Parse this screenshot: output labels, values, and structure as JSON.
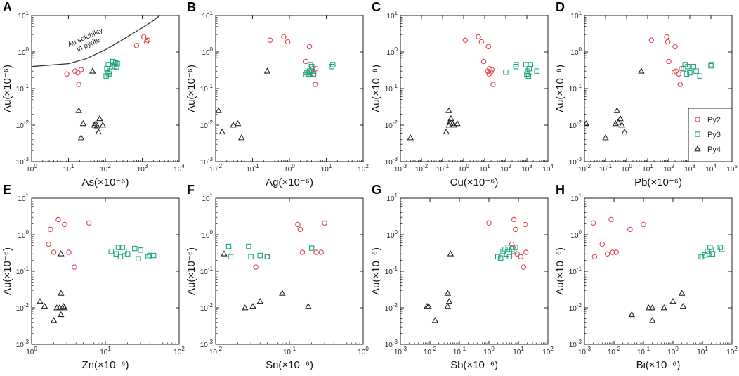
{
  "colors": {
    "Py2": "#e0464f",
    "Py3": "#1aa57a",
    "Py4": "#222222",
    "axis": "#222222"
  },
  "legend": [
    {
      "name": "Py2",
      "symbol": "circle"
    },
    {
      "name": "Py3",
      "symbol": "square"
    },
    {
      "name": "Py4",
      "symbol": "triangle"
    }
  ],
  "chart_data": [
    {
      "type": "scatter",
      "panel": "A",
      "xlabel": "As(×10⁻⁶)",
      "ylabel": "Au(×10⁻⁶)",
      "xscale": "log",
      "yscale": "log",
      "xlim": [
        1,
        10000
      ],
      "ylim": [
        0.001,
        10
      ],
      "annotation": {
        "text_line1": "Au solubility",
        "text_line2": "in pyrite"
      },
      "curve": [
        [
          1,
          0.4
        ],
        [
          10,
          0.48
        ],
        [
          30,
          0.65
        ],
        [
          100,
          1.15
        ],
        [
          300,
          2.2
        ],
        [
          1000,
          4.6
        ],
        [
          2000,
          7.2
        ],
        [
          3000,
          10
        ]
      ],
      "series": [
        {
          "name": "Py2",
          "x": [
            9,
            15,
            18,
            19,
            22,
            700,
            1100,
            1300,
            1400
          ],
          "y": [
            0.25,
            0.3,
            0.27,
            0.13,
            0.33,
            1.5,
            2.6,
            1.9,
            2.1
          ]
        },
        {
          "name": "Py3",
          "x": [
            105,
            110,
            115,
            120,
            125,
            130,
            160,
            170,
            180,
            190,
            200,
            210
          ],
          "y": [
            0.22,
            0.35,
            0.27,
            0.45,
            0.25,
            0.3,
            0.55,
            0.45,
            0.4,
            0.5,
            0.38,
            0.48
          ]
        },
        {
          "name": "Py4",
          "x": [
            19,
            22,
            45,
            50,
            55,
            60,
            65,
            70,
            85,
            25
          ],
          "y": [
            0.025,
            0.0045,
            0.3,
            0.01,
            0.011,
            0.0095,
            0.0065,
            0.015,
            0.01,
            0.011
          ]
        }
      ]
    },
    {
      "type": "scatter",
      "panel": "B",
      "xlabel": "Ag(×10⁻⁶)",
      "ylabel": "Au(×10⁻⁶)",
      "xscale": "log",
      "yscale": "log",
      "xlim": [
        0.01,
        100
      ],
      "ylim": [
        0.001,
        10
      ],
      "series": [
        {
          "name": "Py2",
          "x": [
            0.3,
            0.7,
            0.9,
            2.8,
            3.5,
            4.0,
            4.3,
            4.6,
            5.0,
            5.2,
            3.2
          ],
          "y": [
            2.1,
            2.6,
            1.9,
            0.55,
            1.4,
            0.3,
            0.35,
            0.25,
            0.13,
            0.35,
            0.28
          ]
        },
        {
          "name": "Py3",
          "x": [
            2.8,
            3.0,
            3.3,
            3.5,
            3.7,
            4.0,
            4.2,
            4.5,
            14,
            15
          ],
          "y": [
            0.24,
            0.27,
            0.25,
            0.3,
            0.45,
            0.4,
            0.3,
            0.25,
            0.4,
            0.45
          ]
        },
        {
          "name": "Py4",
          "x": [
            0.012,
            0.015,
            0.03,
            0.04,
            0.05,
            0.25
          ],
          "y": [
            0.025,
            0.0065,
            0.01,
            0.011,
            0.0045,
            0.3
          ]
        }
      ]
    },
    {
      "type": "scatter",
      "panel": "C",
      "xlabel": "Cu(×10⁻⁶)",
      "ylabel": "Au(×10⁻⁶)",
      "xscale": "log",
      "yscale": "log",
      "xlim": [
        0.001,
        10000
      ],
      "ylim": [
        0.001,
        10
      ],
      "series": [
        {
          "name": "Py2",
          "x": [
            1.2,
            5,
            7,
            9,
            15,
            14,
            16,
            17,
            20,
            22,
            25
          ],
          "y": [
            2.1,
            2.6,
            1.9,
            0.55,
            1.4,
            0.3,
            0.25,
            0.35,
            0.28,
            0.33,
            0.13
          ]
        },
        {
          "name": "Py3",
          "x": [
            100,
            300,
            310,
            900,
            1000,
            1100,
            1200,
            1300,
            1500,
            3000,
            1400
          ],
          "y": [
            0.28,
            0.4,
            0.45,
            0.45,
            0.25,
            0.3,
            0.22,
            0.35,
            0.45,
            0.3,
            0.28
          ]
        },
        {
          "name": "Py4",
          "x": [
            0.003,
            0.15,
            0.2,
            0.25,
            0.3,
            0.35,
            0.5,
            0.2,
            0.22
          ],
          "y": [
            0.0045,
            0.0065,
            0.01,
            0.015,
            0.011,
            0.01,
            0.011,
            0.025,
            0.012
          ]
        }
      ]
    },
    {
      "type": "scatter",
      "panel": "D",
      "xlabel": "Pb(×10⁻⁶)",
      "ylabel": "Au(×10⁻⁶)",
      "xscale": "log",
      "yscale": "log",
      "xlim": [
        0.01,
        100000
      ],
      "ylim": [
        0.001,
        10
      ],
      "series": [
        {
          "name": "Py2",
          "x": [
            15,
            80,
            90,
            200,
            220,
            300,
            350,
            400,
            100,
            180
          ],
          "y": [
            2.1,
            2.6,
            1.9,
            1.4,
            0.3,
            0.25,
            0.13,
            0.35,
            0.55,
            0.28
          ]
        },
        {
          "name": "Py3",
          "x": [
            500,
            600,
            700,
            800,
            1000,
            1500,
            2000,
            3000,
            10000,
            11000
          ],
          "y": [
            0.35,
            0.45,
            0.25,
            0.4,
            0.27,
            0.4,
            0.3,
            0.22,
            0.42,
            0.45
          ]
        },
        {
          "name": "Py4",
          "x": [
            0.012,
            0.1,
            0.3,
            0.35,
            0.4,
            0.5,
            0.6,
            0.8,
            5
          ],
          "y": [
            0.011,
            0.0045,
            0.011,
            0.025,
            0.012,
            0.015,
            0.01,
            0.0065,
            0.3
          ]
        }
      ]
    },
    {
      "type": "scatter",
      "panel": "E",
      "xlabel": "Zn(×10⁻⁶)",
      "ylabel": "Au(×10⁻⁶)",
      "xscale": "log",
      "yscale": "log",
      "xlim": [
        1,
        100
      ],
      "ylim": [
        0.001,
        10
      ],
      "series": [
        {
          "name": "Py2",
          "x": [
            1.7,
            1.8,
            2.0,
            2.3,
            2.8,
            3.2,
            3.8,
            6.0
          ],
          "y": [
            0.55,
            1.4,
            0.33,
            2.6,
            1.9,
            0.33,
            0.13,
            2.1
          ]
        },
        {
          "name": "Py3",
          "x": [
            12,
            14,
            15,
            16,
            17,
            18,
            20,
            25,
            28,
            30,
            38,
            40,
            45
          ],
          "y": [
            0.35,
            0.3,
            0.45,
            0.25,
            0.45,
            0.35,
            0.3,
            0.42,
            0.22,
            0.38,
            0.25,
            0.27,
            0.27
          ]
        },
        {
          "name": "Py4",
          "x": [
            1.3,
            1.5,
            2.0,
            2.2,
            2.4,
            2.5,
            2.5,
            2.7,
            2.8,
            2.5
          ],
          "y": [
            0.015,
            0.011,
            0.0045,
            0.01,
            0.01,
            0.0065,
            0.025,
            0.011,
            0.01,
            0.3
          ]
        }
      ]
    },
    {
      "type": "scatter",
      "panel": "F",
      "xlabel": "Sn(×10⁻⁶)",
      "ylabel": "Au(×10⁻⁶)",
      "xscale": "log",
      "yscale": "log",
      "xlim": [
        0.01,
        1
      ],
      "ylim": [
        0.001,
        10
      ],
      "series": [
        {
          "name": "Py2",
          "x": [
            0.035,
            0.05,
            0.13,
            0.14,
            0.15,
            0.23,
            0.27,
            0.3
          ],
          "y": [
            0.13,
            0.25,
            1.9,
            1.4,
            0.33,
            0.33,
            0.33,
            2.1
          ]
        },
        {
          "name": "Py3",
          "x": [
            0.015,
            0.016,
            0.028,
            0.03,
            0.04,
            0.05,
            0.2
          ],
          "y": [
            0.48,
            0.25,
            0.48,
            0.25,
            0.27,
            0.25,
            0.43
          ]
        },
        {
          "name": "Py4",
          "x": [
            0.013,
            0.025,
            0.032,
            0.04,
            0.08,
            0.18
          ],
          "y": [
            0.3,
            0.01,
            0.011,
            0.015,
            0.025,
            0.011
          ]
        }
      ]
    },
    {
      "type": "scatter",
      "panel": "G",
      "xlabel": "Sb(×10⁻⁶)",
      "ylabel": "Au(×10⁻⁶)",
      "xscale": "log",
      "yscale": "log",
      "xlim": [
        0.001,
        100
      ],
      "ylim": [
        0.001,
        10
      ],
      "series": [
        {
          "name": "Py2",
          "x": [
            1.0,
            6.0,
            7.0,
            8.0,
            9.0,
            12,
            15,
            17,
            18,
            6.5
          ],
          "y": [
            2.1,
            0.55,
            2.6,
            1.4,
            0.3,
            0.25,
            0.13,
            1.9,
            0.33,
            0.45
          ]
        },
        {
          "name": "Py3",
          "x": [
            2.0,
            2.5,
            3.0,
            3.5,
            4.0,
            4.5,
            5.0,
            6.0,
            7.0,
            8.0
          ],
          "y": [
            0.25,
            0.23,
            0.35,
            0.4,
            0.3,
            0.45,
            0.25,
            0.4,
            0.35,
            0.45
          ]
        },
        {
          "name": "Py4",
          "x": [
            0.008,
            0.009,
            0.015,
            0.04,
            0.04,
            0.045,
            0.05
          ],
          "y": [
            0.011,
            0.011,
            0.0045,
            0.025,
            0.011,
            0.015,
            0.3
          ]
        }
      ]
    },
    {
      "type": "scatter",
      "panel": "H",
      "xlabel": "Bi(×10⁻⁶)",
      "ylabel": "Au(×10⁻⁶)",
      "xscale": "log",
      "yscale": "log",
      "xlim": [
        0.001,
        100
      ],
      "ylim": [
        0.001,
        10
      ],
      "series": [
        {
          "name": "Py2",
          "x": [
            0.002,
            0.0022,
            0.004,
            0.006,
            0.008,
            0.009,
            0.012,
            0.035,
            0.1
          ],
          "y": [
            2.1,
            0.25,
            0.55,
            0.3,
            2.6,
            0.33,
            0.33,
            1.4,
            1.9
          ]
        },
        {
          "name": "Py3",
          "x": [
            9,
            10,
            12,
            15,
            17,
            18,
            20,
            22,
            40,
            45
          ],
          "y": [
            0.25,
            0.25,
            0.28,
            0.35,
            0.3,
            0.45,
            0.4,
            0.3,
            0.45,
            0.4
          ]
        },
        {
          "name": "Py4",
          "x": [
            0.04,
            0.15,
            0.2,
            0.5,
            1.0,
            2.0,
            2.2,
            0.2
          ],
          "y": [
            0.0065,
            0.01,
            0.0045,
            0.01,
            0.015,
            0.025,
            0.011,
            0.01
          ]
        }
      ]
    }
  ]
}
